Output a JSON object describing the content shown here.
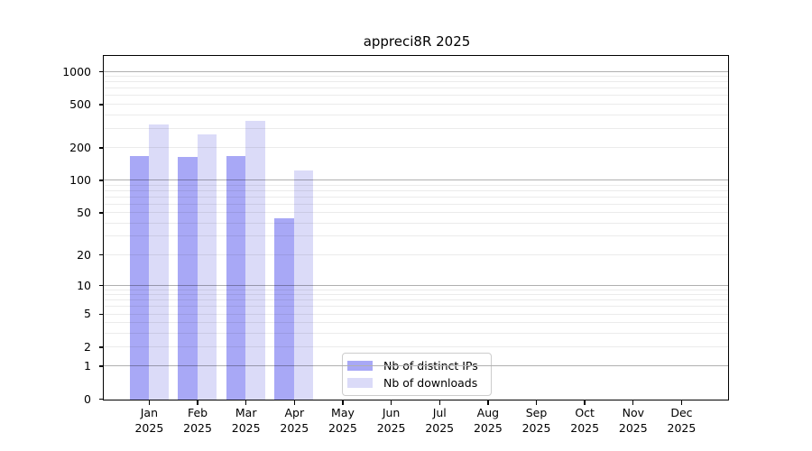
{
  "figure": {
    "background": "#ffffff"
  },
  "chart_data": {
    "type": "bar",
    "title": "appreci8R 2025",
    "categories": [
      "Jan",
      "Feb",
      "Mar",
      "Apr",
      "May",
      "Jun",
      "Jul",
      "Aug",
      "Sep",
      "Oct",
      "Nov",
      "Dec"
    ],
    "year_label": "2025",
    "series": [
      {
        "name": "Nb of distinct IPs",
        "color": "#a8a8f6",
        "values": [
          170,
          165,
          170,
          45,
          0,
          0,
          0,
          0,
          0,
          0,
          0,
          0
        ]
      },
      {
        "name": "Nb of downloads",
        "color": "#dbdbf8",
        "values": [
          330,
          270,
          355,
          125,
          0,
          0,
          0,
          0,
          0,
          0,
          0,
          0
        ]
      }
    ],
    "y_axis": {
      "scale": "log10(value+1)",
      "ticks": [
        0,
        1,
        2,
        5,
        10,
        20,
        50,
        100,
        200,
        500,
        1000
      ],
      "range_top": 1450
    },
    "legend": {
      "position": "bottom-center"
    },
    "grid": {
      "show": true,
      "major_color": "#b0b0b0",
      "minor_color": "#ebebeb"
    },
    "axis_color": "#000000"
  }
}
